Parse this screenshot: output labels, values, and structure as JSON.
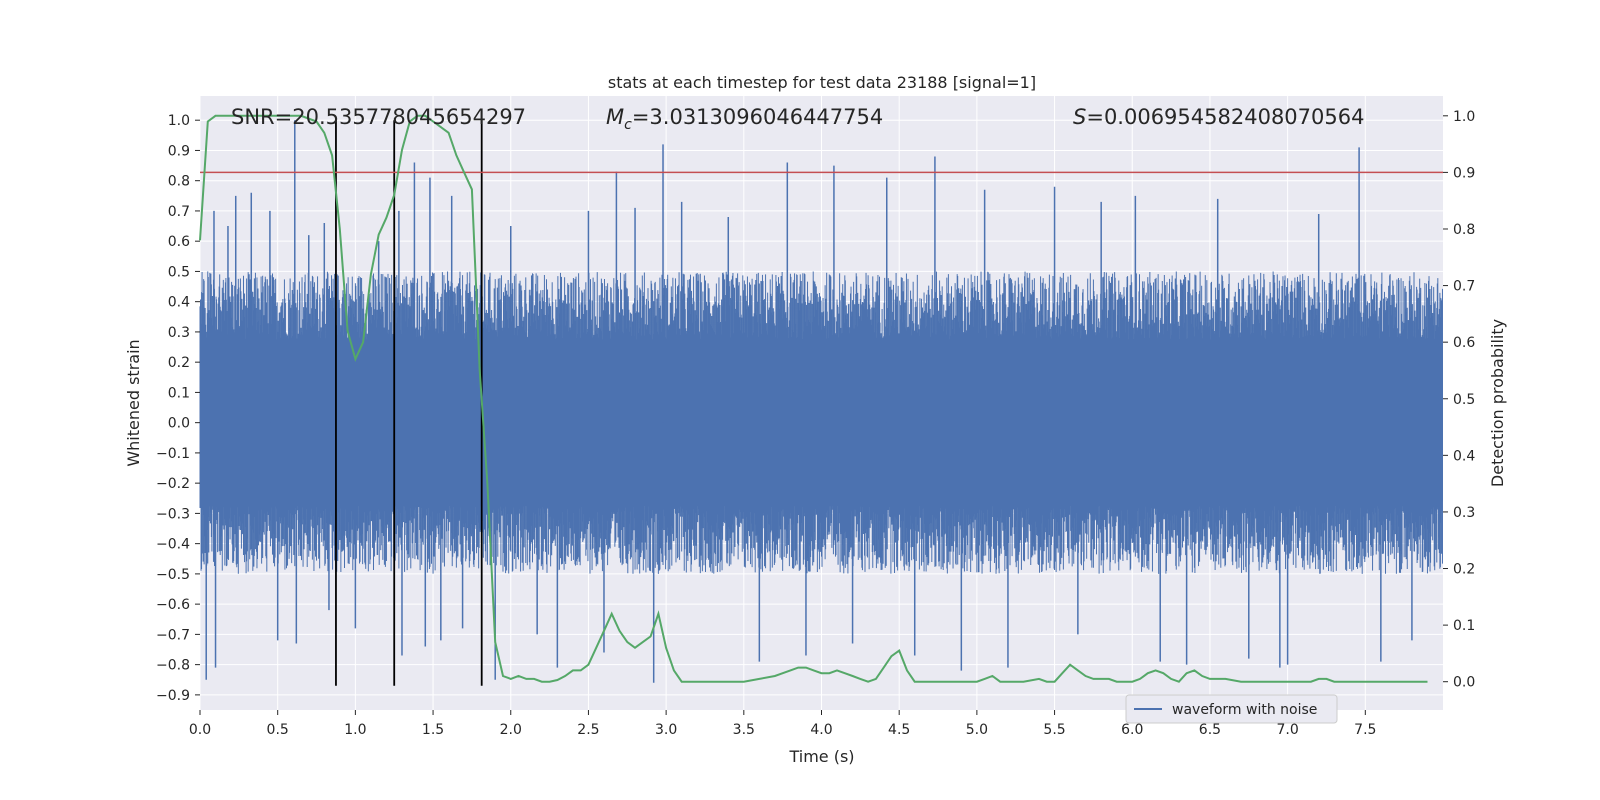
{
  "chart_data": {
    "type": "line",
    "title": "stats at each timestep for test data 23188 [signal=1]",
    "xlabel": "Time (s)",
    "ylabel_left": "Whitened strain",
    "ylabel_right": "Detection probability",
    "xlim": [
      0,
      8
    ],
    "ylim_left": [
      -0.95,
      1.08
    ],
    "ylim_right": [
      -0.05,
      1.035
    ],
    "x_ticks": [
      "0.0",
      "0.5",
      "1.0",
      "1.5",
      "2.0",
      "2.5",
      "3.0",
      "3.5",
      "4.0",
      "4.5",
      "5.0",
      "5.5",
      "6.0",
      "6.5",
      "7.0",
      "7.5"
    ],
    "y_ticks_left": [
      "-0.9",
      "-0.8",
      "-0.7",
      "-0.6",
      "-0.5",
      "-0.4",
      "-0.3",
      "-0.2",
      "-0.1",
      "0.0",
      "0.1",
      "0.2",
      "0.3",
      "0.4",
      "0.5",
      "0.6",
      "0.7",
      "0.8",
      "0.9",
      "1.0"
    ],
    "y_ticks_right": [
      "0.0",
      "0.1",
      "0.2",
      "0.3",
      "0.4",
      "0.5",
      "0.6",
      "0.7",
      "0.8",
      "0.9",
      "1.0"
    ],
    "grid": true,
    "legend_position": "lower-right",
    "annotations": [
      {
        "text": "SNR=20.535778045654297"
      },
      {
        "prefix": "M",
        "subscript": "c",
        "text": "=3.0313096046447754"
      },
      {
        "prefix": "S",
        "text": "=0.006954582408070564"
      }
    ],
    "threshold_right": 0.9,
    "vertical_lines_x": [
      0.875,
      1.25,
      1.813
    ],
    "series": [
      {
        "name": "waveform with noise",
        "axis": "left",
        "color": "#4c72b0",
        "kind": "dense-noise",
        "envelope": 0.5,
        "spikes": [
          {
            "x": 0.04,
            "y": -0.85
          },
          {
            "x": 0.09,
            "y": 0.7
          },
          {
            "x": 0.1,
            "y": -0.81
          },
          {
            "x": 0.18,
            "y": 0.65
          },
          {
            "x": 0.23,
            "y": 0.75
          },
          {
            "x": 0.33,
            "y": 0.76
          },
          {
            "x": 0.45,
            "y": 0.7
          },
          {
            "x": 0.5,
            "y": -0.72
          },
          {
            "x": 0.61,
            "y": 1.0
          },
          {
            "x": 0.62,
            "y": -0.73
          },
          {
            "x": 0.7,
            "y": 0.62
          },
          {
            "x": 0.8,
            "y": 0.66
          },
          {
            "x": 0.83,
            "y": -0.62
          },
          {
            "x": 1.0,
            "y": -0.68
          },
          {
            "x": 1.15,
            "y": 0.6
          },
          {
            "x": 1.28,
            "y": 0.7
          },
          {
            "x": 1.3,
            "y": -0.77
          },
          {
            "x": 1.38,
            "y": 0.86
          },
          {
            "x": 1.45,
            "y": -0.74
          },
          {
            "x": 1.48,
            "y": 0.81
          },
          {
            "x": 1.55,
            "y": -0.72
          },
          {
            "x": 1.62,
            "y": 0.75
          },
          {
            "x": 1.69,
            "y": -0.68
          },
          {
            "x": 1.9,
            "y": -0.85
          },
          {
            "x": 2.0,
            "y": 0.65
          },
          {
            "x": 2.17,
            "y": -0.7
          },
          {
            "x": 2.3,
            "y": -0.81
          },
          {
            "x": 2.5,
            "y": 0.7
          },
          {
            "x": 2.6,
            "y": -0.76
          },
          {
            "x": 2.68,
            "y": 0.83
          },
          {
            "x": 2.8,
            "y": 0.71
          },
          {
            "x": 2.92,
            "y": -0.86
          },
          {
            "x": 2.98,
            "y": 0.92
          },
          {
            "x": 3.1,
            "y": 0.73
          },
          {
            "x": 3.4,
            "y": 0.68
          },
          {
            "x": 3.6,
            "y": -0.79
          },
          {
            "x": 3.78,
            "y": 0.86
          },
          {
            "x": 3.9,
            "y": -0.77
          },
          {
            "x": 4.08,
            "y": 0.85
          },
          {
            "x": 4.2,
            "y": -0.73
          },
          {
            "x": 4.42,
            "y": 0.81
          },
          {
            "x": 4.6,
            "y": -0.77
          },
          {
            "x": 4.73,
            "y": 0.88
          },
          {
            "x": 4.9,
            "y": -0.82
          },
          {
            "x": 5.05,
            "y": 0.77
          },
          {
            "x": 5.2,
            "y": -0.81
          },
          {
            "x": 5.5,
            "y": 0.78
          },
          {
            "x": 5.65,
            "y": -0.7
          },
          {
            "x": 5.8,
            "y": 0.73
          },
          {
            "x": 6.02,
            "y": 0.75
          },
          {
            "x": 6.18,
            "y": -0.79
          },
          {
            "x": 6.35,
            "y": -0.8
          },
          {
            "x": 6.55,
            "y": 0.74
          },
          {
            "x": 6.75,
            "y": -0.78
          },
          {
            "x": 6.95,
            "y": -0.81
          },
          {
            "x": 7.0,
            "y": -0.8
          },
          {
            "x": 7.2,
            "y": 0.69
          },
          {
            "x": 7.46,
            "y": 0.91
          },
          {
            "x": 7.6,
            "y": -0.79
          },
          {
            "x": 7.8,
            "y": -0.72
          }
        ]
      },
      {
        "axis": "right",
        "color": "#55a868",
        "x": [
          0.0,
          0.05,
          0.1,
          0.2,
          0.35,
          0.5,
          0.65,
          0.75,
          0.8,
          0.85,
          0.9,
          0.95,
          1.0,
          1.05,
          1.1,
          1.15,
          1.2,
          1.25,
          1.3,
          1.35,
          1.4,
          1.45,
          1.5,
          1.55,
          1.6,
          1.65,
          1.7,
          1.75,
          1.8,
          1.85,
          1.9,
          1.95,
          2.0,
          2.05,
          2.1,
          2.15,
          2.2,
          2.25,
          2.3,
          2.35,
          2.4,
          2.45,
          2.5,
          2.55,
          2.6,
          2.65,
          2.7,
          2.75,
          2.8,
          2.85,
          2.9,
          2.95,
          3.0,
          3.05,
          3.1,
          3.2,
          3.3,
          3.5,
          3.6,
          3.7,
          3.75,
          3.8,
          3.85,
          3.9,
          3.95,
          4.0,
          4.05,
          4.1,
          4.15,
          4.2,
          4.25,
          4.3,
          4.35,
          4.4,
          4.45,
          4.5,
          4.55,
          4.6,
          4.65,
          4.7,
          4.8,
          4.9,
          5.0,
          5.05,
          5.1,
          5.15,
          5.2,
          5.3,
          5.4,
          5.45,
          5.5,
          5.55,
          5.6,
          5.65,
          5.7,
          5.75,
          5.8,
          5.85,
          5.9,
          5.95,
          6.0,
          6.05,
          6.1,
          6.15,
          6.2,
          6.25,
          6.3,
          6.35,
          6.4,
          6.45,
          6.5,
          6.6,
          6.7,
          6.8,
          6.9,
          7.0,
          7.1,
          7.15,
          7.2,
          7.25,
          7.3,
          7.4,
          7.5,
          7.6,
          7.7,
          7.8,
          7.9
        ],
        "y": [
          0.78,
          0.99,
          1.0,
          1.0,
          1.0,
          1.0,
          1.0,
          0.99,
          0.97,
          0.93,
          0.8,
          0.62,
          0.57,
          0.6,
          0.72,
          0.79,
          0.82,
          0.86,
          0.94,
          0.99,
          1.0,
          1.0,
          0.99,
          0.98,
          0.97,
          0.93,
          0.9,
          0.87,
          0.55,
          0.35,
          0.07,
          0.01,
          0.005,
          0.01,
          0.005,
          0.005,
          0.0,
          0.0,
          0.003,
          0.01,
          0.02,
          0.02,
          0.03,
          0.06,
          0.09,
          0.12,
          0.09,
          0.07,
          0.06,
          0.07,
          0.08,
          0.12,
          0.06,
          0.02,
          0.0,
          0.0,
          0.0,
          0.0,
          0.005,
          0.01,
          0.015,
          0.02,
          0.025,
          0.025,
          0.02,
          0.015,
          0.015,
          0.02,
          0.015,
          0.01,
          0.005,
          0.0,
          0.005,
          0.025,
          0.045,
          0.055,
          0.02,
          0.0,
          0.0,
          0.0,
          0.0,
          0.0,
          0.0,
          0.005,
          0.01,
          0.0,
          0.0,
          0.0,
          0.005,
          0.0,
          0.0,
          0.015,
          0.03,
          0.02,
          0.01,
          0.005,
          0.005,
          0.005,
          0.0,
          0.0,
          0.0,
          0.005,
          0.015,
          0.02,
          0.015,
          0.005,
          0.0,
          0.015,
          0.02,
          0.01,
          0.005,
          0.005,
          0.0,
          0.0,
          0.0,
          0.0,
          0.0,
          0.0,
          0.005,
          0.005,
          0.0,
          0.0,
          0.0,
          0.0,
          0.0,
          0.0,
          0.0
        ]
      }
    ]
  },
  "colors": {
    "background": "#ffffff",
    "plot_background": "#eaeaf2",
    "grid": "#ffffff",
    "waveform": "#4c72b0",
    "probability": "#55a868",
    "threshold": "#c44e52",
    "vertical_lines": "#000000"
  }
}
